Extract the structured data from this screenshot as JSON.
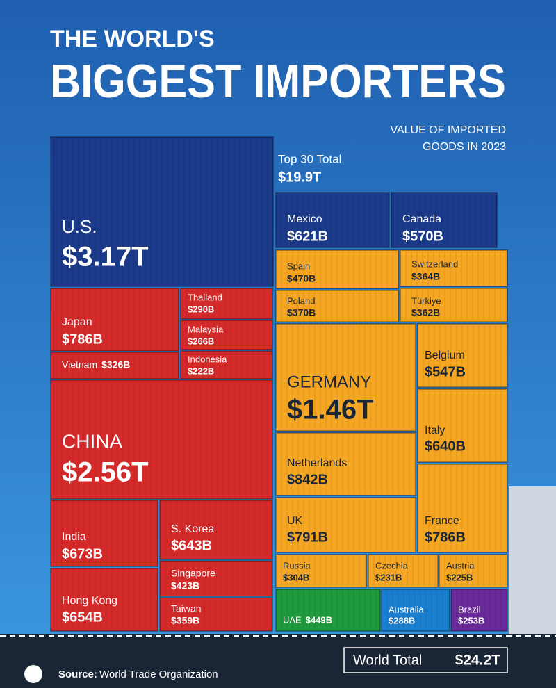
{
  "chart_data": {
    "type": "treemap",
    "title_line1": "THE WORLD'S",
    "title_line2": "BIGGEST IMPORTERS",
    "subtitle_line1": "VALUE OF IMPORTED",
    "subtitle_line2": "GOODS IN 2023",
    "top_total_label": "Top 30 Total",
    "top_total": 19900,
    "top_total_label_value": "$19.9T",
    "world_total_label": "World Total",
    "world_total": 24200,
    "world_total_label_value": "$24.2T",
    "source_label": "Source:",
    "source": "World Trade Organization",
    "categories": [
      "U.S.",
      "Mexico",
      "Canada",
      "Japan",
      "Thailand",
      "Malaysia",
      "Vietnam",
      "Indonesia",
      "CHINA",
      "India",
      "S. Korea",
      "Singapore",
      "Hong Kong",
      "Taiwan",
      "Spain",
      "Switzerland",
      "Poland",
      "Türkiye",
      "GERMANY",
      "Belgium",
      "Italy",
      "Netherlands",
      "UK",
      "France",
      "Russia",
      "Czechia",
      "Austria",
      "UAE",
      "Australia",
      "Brazil"
    ],
    "values": [
      3170,
      621,
      570,
      786,
      290,
      266,
      326,
      222,
      2560,
      673,
      643,
      423,
      654,
      359,
      470,
      364,
      370,
      362,
      1460,
      547,
      640,
      842,
      791,
      786,
      304,
      231,
      225,
      449,
      288,
      253
    ],
    "value_labels": [
      "$3.17T",
      "$621B",
      "$570B",
      "$786B",
      "$290B",
      "$266B",
      "$326B",
      "$222B",
      "$2.56T",
      "$673B",
      "$643B",
      "$423B",
      "$654B",
      "$359B",
      "$470B",
      "$364B",
      "$370B",
      "$362B",
      "$1.46T",
      "$547B",
      "$640B",
      "$842B",
      "$791B",
      "$786B",
      "$304B",
      "$231B",
      "$225B",
      "$449B",
      "$288B",
      "$253B"
    ],
    "colors": [
      "#1c3a8a",
      "#1c3a8a",
      "#1c3a8a",
      "#d42a2a",
      "#d42a2a",
      "#d42a2a",
      "#d42a2a",
      "#d42a2a",
      "#d42a2a",
      "#d42a2a",
      "#d42a2a",
      "#d42a2a",
      "#d42a2a",
      "#d42a2a",
      "#f5a623",
      "#f5a623",
      "#f5a623",
      "#f5a623",
      "#f5a623",
      "#f5a623",
      "#f5a623",
      "#f5a623",
      "#f5a623",
      "#f5a623",
      "#f5a623",
      "#f5a623",
      "#f5a623",
      "#1f9a3c",
      "#1a7fd0",
      "#6a2a9a"
    ]
  }
}
